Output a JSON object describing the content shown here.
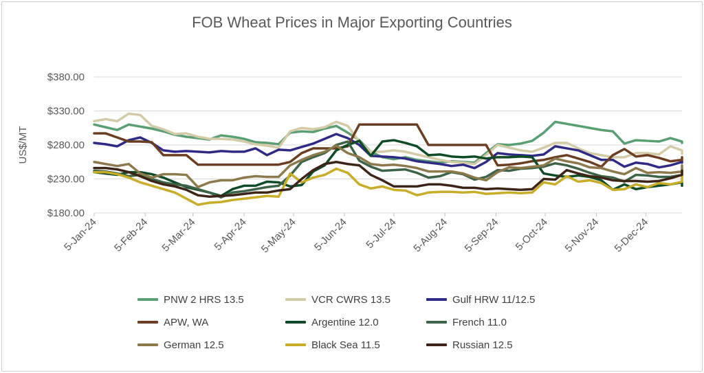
{
  "chart_data": {
    "type": "line",
    "title": "FOB Wheat Prices in Major Exporting Countries",
    "ylabel": "US$/MT",
    "xlabel": "",
    "ylim": [
      180,
      380
    ],
    "yticks": [
      "$180.00",
      "$230.00",
      "$280.00",
      "$330.00",
      "$380.00"
    ],
    "ytick_values": [
      180,
      230,
      280,
      330,
      380
    ],
    "xlim_weeks": [
      0,
      51
    ],
    "xticks": [
      "5-Jan-24",
      "5-Feb-24",
      "5-Mar-24",
      "5-Apr-24",
      "5-May-24",
      "5-Jun-24",
      "5-Jul-24",
      "5-Aug-24",
      "5-Sep-24",
      "5-Oct-24",
      "5-Nov-24",
      "5-Dec-24"
    ],
    "xtick_weeks": [
      0,
      4.43,
      8.57,
      13,
      17.29,
      21.71,
      26,
      30.43,
      34.86,
      39.14,
      43.57,
      47.86
    ],
    "series": [
      {
        "name": "PNW 2 HRS 13.5",
        "color": "#5a9e73",
        "values": [
          310,
          306,
          302,
          310,
          307,
          304,
          300,
          295,
          292,
          290,
          288,
          294,
          292,
          289,
          284,
          283,
          281,
          298,
          300,
          299,
          304,
          308,
          298,
          287,
          270,
          262,
          259,
          262,
          258,
          256,
          254,
          256,
          255,
          254,
          268,
          281,
          280,
          282,
          286,
          298,
          314,
          311,
          308,
          305,
          302,
          300,
          282,
          287,
          286,
          285,
          290,
          285,
          283
        ]
      },
      {
        "name": "VCR CWRS 13.5",
        "color": "#d3cba7",
        "values": [
          315,
          318,
          315,
          326,
          324,
          308,
          303,
          296,
          297,
          292,
          289,
          289,
          288,
          285,
          281,
          279,
          276,
          300,
          305,
          303,
          306,
          314,
          308,
          285,
          270,
          270,
          272,
          270,
          266,
          262,
          258,
          255,
          254,
          252,
          265,
          280,
          276,
          272,
          270,
          276,
          283,
          283,
          275,
          268,
          265,
          262,
          262,
          268,
          268,
          266,
          278,
          272,
          272,
          267
        ]
      },
      {
        "name": "Gulf HRW 11/12.5",
        "color": "#2e2a85",
        "values": [
          283,
          281,
          278,
          287,
          291,
          283,
          272,
          270,
          271,
          270,
          269,
          271,
          270,
          270,
          275,
          265,
          273,
          272,
          277,
          282,
          289,
          296,
          290,
          280,
          264,
          263,
          262,
          260,
          256,
          254,
          252,
          249,
          251,
          246,
          255,
          268,
          266,
          265,
          264,
          266,
          278,
          275,
          272,
          265,
          258,
          258,
          248,
          254,
          252,
          247,
          250,
          255,
          254,
          256
        ]
      },
      {
        "name": "APW, WA",
        "color": "#6b3e22",
        "values": [
          297,
          297,
          291,
          285,
          285,
          284,
          265,
          265,
          265,
          251,
          251,
          251,
          251,
          251,
          251,
          251,
          251,
          255,
          268,
          275,
          275,
          275,
          278,
          310,
          310,
          310,
          310,
          310,
          310,
          280,
          280,
          280,
          280,
          280,
          280,
          250,
          251,
          253,
          256,
          258,
          262,
          265,
          260,
          255,
          248,
          265,
          274,
          263,
          265,
          261,
          256,
          258,
          260,
          262
        ]
      },
      {
        "name": "Argentine 12.0",
        "color": "#0e4b26",
        "values": [
          240,
          238,
          236,
          240,
          240,
          237,
          232,
          225,
          218,
          214,
          210,
          205,
          215,
          220,
          220,
          226,
          225,
          219,
          221,
          241,
          250,
          272,
          280,
          286,
          264,
          285,
          287,
          283,
          278,
          265,
          266,
          263,
          262,
          263,
          260,
          262,
          262,
          263,
          262,
          238,
          235,
          233,
          235,
          233,
          228,
          214,
          222,
          215,
          218,
          220,
          222,
          225,
          223,
          220
        ]
      },
      {
        "name": "French 11.0",
        "color": "#3d6349",
        "values": [
          242,
          241,
          238,
          234,
          236,
          230,
          225,
          222,
          220,
          215,
          210,
          203,
          210,
          212,
          215,
          218,
          220,
          235,
          255,
          262,
          268,
          280,
          285,
          257,
          248,
          242,
          243,
          244,
          239,
          232,
          234,
          240,
          237,
          229,
          233,
          243,
          242,
          245,
          246,
          248,
          253,
          250,
          245,
          239,
          234,
          232,
          226,
          236,
          235,
          233,
          233,
          236,
          242,
          245
        ]
      },
      {
        "name": "German 12.5",
        "color": "#8c7a4c",
        "values": [
          255,
          252,
          249,
          252,
          238,
          232,
          237,
          237,
          236,
          218,
          225,
          228,
          228,
          232,
          234,
          233,
          233,
          250,
          258,
          265,
          270,
          279,
          268,
          262,
          252,
          250,
          251,
          249,
          246,
          241,
          241,
          241,
          238,
          232,
          228,
          240,
          247,
          246,
          248,
          250,
          260,
          256,
          253,
          247,
          246,
          241,
          237,
          246,
          239,
          240,
          239,
          241,
          247,
          250
        ]
      },
      {
        "name": "Black Sea 11.5",
        "color": "#c8ad29",
        "values": [
          240,
          240,
          237,
          232,
          225,
          220,
          215,
          210,
          201,
          192,
          195,
          196,
          199,
          201,
          203,
          205,
          204,
          238,
          225,
          232,
          236,
          245,
          239,
          222,
          216,
          219,
          214,
          213,
          206,
          210,
          211,
          211,
          210,
          211,
          208,
          209,
          210,
          209,
          210,
          225,
          222,
          234,
          226,
          228,
          224,
          214,
          215,
          222,
          218,
          224,
          222,
          226,
          231,
          237
        ]
      },
      {
        "name": "Russian 12.5",
        "color": "#3c2418",
        "values": [
          246,
          246,
          244,
          240,
          234,
          227,
          222,
          219,
          214,
          206,
          204,
          205,
          206,
          208,
          210,
          210,
          213,
          215,
          230,
          243,
          252,
          255,
          252,
          250,
          236,
          228,
          219,
          219,
          219,
          222,
          222,
          220,
          217,
          217,
          215,
          216,
          215,
          214,
          215,
          230,
          229,
          243,
          238,
          234,
          232,
          228,
          227,
          227,
          226,
          227,
          231,
          236,
          239,
          242
        ]
      }
    ]
  }
}
